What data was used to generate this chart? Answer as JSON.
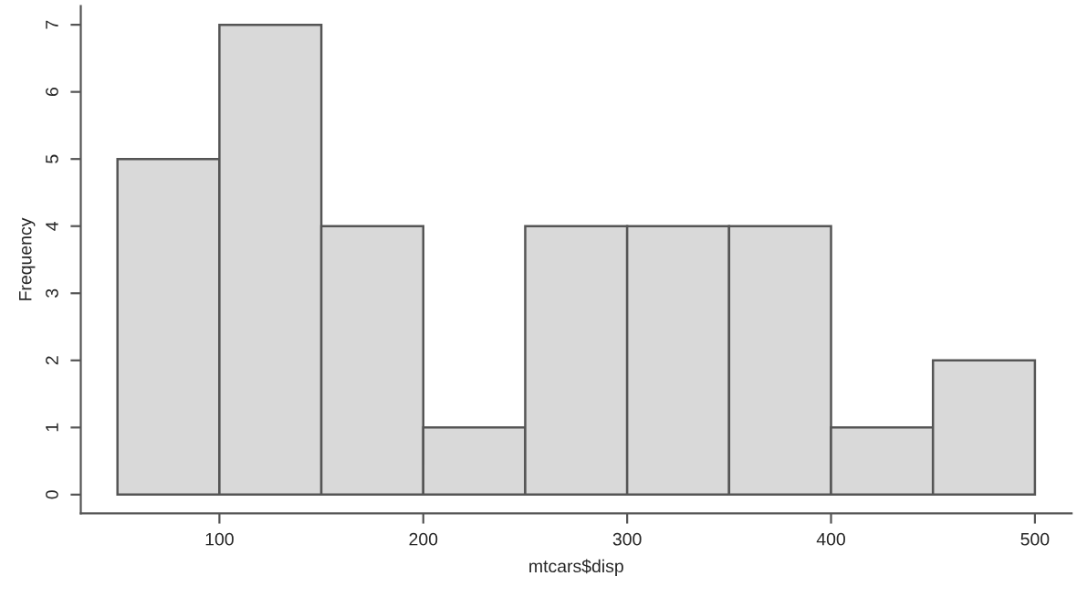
{
  "chart_data": {
    "type": "histogram",
    "xlabel": "mtcars$disp",
    "ylabel": "Frequency",
    "bins": [
      50,
      100,
      150,
      200,
      250,
      300,
      350,
      400,
      450,
      500
    ],
    "values": [
      5,
      7,
      4,
      1,
      4,
      4,
      4,
      1,
      2
    ],
    "color": "#d9d9d9",
    "xlim": [
      32,
      518
    ],
    "xticks": [
      100,
      200,
      300,
      400,
      500
    ],
    "ylim": [
      -0.28,
      7.28
    ],
    "yticks": [
      0,
      1,
      2,
      3,
      4,
      5,
      6,
      7
    ],
    "grid": false
  }
}
